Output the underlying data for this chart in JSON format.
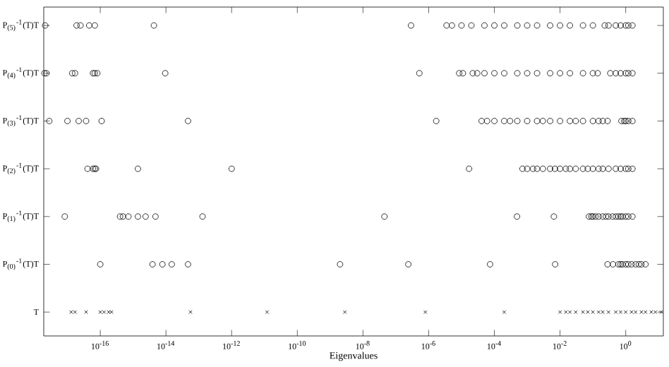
{
  "chart_data": {
    "type": "scatter",
    "orientation": "horizontal",
    "log": "x",
    "xlabel": "Eigenvalues",
    "grid": false,
    "categories": [
      "P$_{(5)}$$^{-1}$(T)T",
      "P$_{(4)}$$^{-1}$(T)T",
      "P$_{(3)}$$^{-1}$(T)T",
      "P$_{(2)}$$^{-1}$(T)T",
      "P$_{(1)}$$^{-1}$(T)T",
      "P$_{(0)}$$^{-1}$(T)T",
      "T"
    ],
    "xlim": [
      1.9e-18,
      14
    ],
    "xticks": [
      {
        "value": 1e-16,
        "label": "10$^{-16}$"
      },
      {
        "value": 1e-14,
        "label": "10$^{-14}$"
      },
      {
        "value": 1e-12,
        "label": "10$^{-12}$"
      },
      {
        "value": 1e-10,
        "label": "10$^{-10}$"
      },
      {
        "value": 1e-08,
        "label": "10$^{-8}$"
      },
      {
        "value": 1e-06,
        "label": "10$^{-6}$"
      },
      {
        "value": 0.0001,
        "label": "10$^{-4}$"
      },
      {
        "value": 0.01,
        "label": "10$^{-2}$"
      },
      {
        "value": 1,
        "label": "10$^{0}$"
      }
    ],
    "series": [
      {
        "color": "#000000",
        "marker": "circle",
        "x": [
          "P$_{(5)}$$^{-1}$(T)T",
          "P$_{(5)}$$^{-1}$(T)T",
          "P$_{(5)}$$^{-1}$(T)T",
          "P$_{(5)}$$^{-1}$(T)T",
          "P$_{(5)}$$^{-1}$(T)T",
          "P$_{(5)}$$^{-1}$(T)T",
          "P$_{(5)}$$^{-1}$(T)T",
          "P$_{(5)}$$^{-1}$(T)T",
          "P$_{(5)}$$^{-1}$(T)T",
          "P$_{(5)}$$^{-1}$(T)T",
          "P$_{(5)}$$^{-1}$(T)T",
          "P$_{(5)}$$^{-1}$(T)T",
          "P$_{(5)}$$^{-1}$(T)T",
          "P$_{(5)}$$^{-1}$(T)T",
          "P$_{(5)}$$^{-1}$(T)T",
          "P$_{(5)}$$^{-1}$(T)T",
          "P$_{(5)}$$^{-1}$(T)T",
          "P$_{(5)}$$^{-1}$(T)T",
          "P$_{(5)}$$^{-1}$(T)T",
          "P$_{(5)}$$^{-1}$(T)T",
          "P$_{(5)}$$^{-1}$(T)T",
          "P$_{(5)}$$^{-1}$(T)T",
          "P$_{(5)}$$^{-1}$(T)T",
          "P$_{(5)}$$^{-1}$(T)T",
          "P$_{(5)}$$^{-1}$(T)T",
          "P$_{(5)}$$^{-1}$(T)T",
          "P$_{(5)}$$^{-1}$(T)T",
          "P$_{(5)}$$^{-1}$(T)T",
          "P$_{(5)}$$^{-1}$(T)T"
        ],
        "values": [
          2.1e-18,
          1.9e-17,
          2.5e-17,
          4.6e-17,
          6.8e-17,
          4.3e-15,
          2.9e-07,
          3.5e-06,
          5.1e-06,
          1e-05,
          2e-05,
          5e-05,
          0.0001,
          0.0002,
          0.0005,
          0.001,
          0.002,
          0.005,
          0.01,
          0.02,
          0.05,
          0.1,
          0.23,
          0.3,
          0.5,
          0.7,
          1,
          1.2,
          1.6
        ]
      },
      {
        "color": "#000000",
        "marker": "circle",
        "x": [
          "P$_{(4)}$$^{-1}$(T)T",
          "P$_{(4)}$$^{-1}$(T)T",
          "P$_{(4)}$$^{-1}$(T)T",
          "P$_{(4)}$$^{-1}$(T)T",
          "P$_{(4)}$$^{-1}$(T)T",
          "P$_{(4)}$$^{-1}$(T)T",
          "P$_{(4)}$$^{-1}$(T)T",
          "P$_{(4)}$$^{-1}$(T)T",
          "P$_{(4)}$$^{-1}$(T)T",
          "P$_{(4)}$$^{-1}$(T)T",
          "P$_{(4)}$$^{-1}$(T)T",
          "P$_{(4)}$$^{-1}$(T)T",
          "P$_{(4)}$$^{-1}$(T)T",
          "P$_{(4)}$$^{-1}$(T)T",
          "P$_{(4)}$$^{-1}$(T)T",
          "P$_{(4)}$$^{-1}$(T)T",
          "P$_{(4)}$$^{-1}$(T)T",
          "P$_{(4)}$$^{-1}$(T)T",
          "P$_{(4)}$$^{-1}$(T)T",
          "P$_{(4)}$$^{-1}$(T)T",
          "P$_{(4)}$$^{-1}$(T)T",
          "P$_{(4)}$$^{-1}$(T)T",
          "P$_{(4)}$$^{-1}$(T)T",
          "P$_{(4)}$$^{-1}$(T)T",
          "P$_{(4)}$$^{-1}$(T)T",
          "P$_{(4)}$$^{-1}$(T)T",
          "P$_{(4)}$$^{-1}$(T)T",
          "P$_{(4)}$$^{-1}$(T)T",
          "P$_{(4)}$$^{-1}$(T)T",
          "P$_{(4)}$$^{-1}$(T)T",
          "P$_{(4)}$$^{-1}$(T)T"
        ],
        "values": [
          2e-18,
          2.3e-18,
          1.4e-17,
          1.7e-17,
          6e-17,
          6.8e-17,
          8.1e-17,
          9.5e-15,
          5.2e-07,
          8.5e-06,
          1.1e-05,
          2.2e-05,
          3e-05,
          5e-05,
          0.0001,
          0.0002,
          0.0005,
          0.001,
          0.002,
          0.005,
          0.01,
          0.02,
          0.05,
          0.1,
          0.14,
          0.34,
          0.5,
          0.7,
          1,
          1.2,
          1.6
        ]
      },
      {
        "color": "#000000",
        "marker": "circle",
        "x": [
          "P$_{(3)}$$^{-1}$(T)T",
          "P$_{(3)}$$^{-1}$(T)T",
          "P$_{(3)}$$^{-1}$(T)T",
          "P$_{(3)}$$^{-1}$(T)T",
          "P$_{(3)}$$^{-1}$(T)T",
          "P$_{(3)}$$^{-1}$(T)T",
          "P$_{(3)}$$^{-1}$(T)T",
          "P$_{(3)}$$^{-1}$(T)T",
          "P$_{(3)}$$^{-1}$(T)T",
          "P$_{(3)}$$^{-1}$(T)T",
          "P$_{(3)}$$^{-1}$(T)T",
          "P$_{(3)}$$^{-1}$(T)T",
          "P$_{(3)}$$^{-1}$(T)T",
          "P$_{(3)}$$^{-1}$(T)T",
          "P$_{(3)}$$^{-1}$(T)T",
          "P$_{(3)}$$^{-1}$(T)T",
          "P$_{(3)}$$^{-1}$(T)T",
          "P$_{(3)}$$^{-1}$(T)T",
          "P$_{(3)}$$^{-1}$(T)T",
          "P$_{(3)}$$^{-1}$(T)T",
          "P$_{(3)}$$^{-1}$(T)T",
          "P$_{(3)}$$^{-1}$(T)T",
          "P$_{(3)}$$^{-1}$(T)T",
          "P$_{(3)}$$^{-1}$(T)T",
          "P$_{(3)}$$^{-1}$(T)T",
          "P$_{(3)}$$^{-1}$(T)T",
          "P$_{(3)}$$^{-1}$(T)T",
          "P$_{(3)}$$^{-1}$(T)T",
          "P$_{(3)}$$^{-1}$(T)T",
          "P$_{(3)}$$^{-1}$(T)T"
        ],
        "values": [
          2.8e-18,
          1e-17,
          2.2e-17,
          3.7e-17,
          1.1e-16,
          4.7e-14,
          1.7e-06,
          4.1e-05,
          6e-05,
          0.0001,
          0.0002,
          0.0003,
          0.0005,
          0.001,
          0.002,
          0.003,
          0.005,
          0.01,
          0.02,
          0.03,
          0.05,
          0.1,
          0.15,
          0.2,
          0.28,
          0.74,
          0.9,
          1,
          1.2,
          1.6
        ]
      },
      {
        "color": "#000000",
        "marker": "circle",
        "x": [
          "P$_{(2)}$$^{-1}$(T)T",
          "P$_{(2)}$$^{-1}$(T)T",
          "P$_{(2)}$$^{-1}$(T)T",
          "P$_{(2)}$$^{-1}$(T)T",
          "P$_{(2)}$$^{-1}$(T)T",
          "P$_{(2)}$$^{-1}$(T)T",
          "P$_{(2)}$$^{-1}$(T)T",
          "P$_{(2)}$$^{-1}$(T)T",
          "P$_{(2)}$$^{-1}$(T)T",
          "P$_{(2)}$$^{-1}$(T)T",
          "P$_{(2)}$$^{-1}$(T)T",
          "P$_{(2)}$$^{-1}$(T)T",
          "P$_{(2)}$$^{-1}$(T)T",
          "P$_{(2)}$$^{-1}$(T)T",
          "P$_{(2)}$$^{-1}$(T)T",
          "P$_{(2)}$$^{-1}$(T)T",
          "P$_{(2)}$$^{-1}$(T)T",
          "P$_{(2)}$$^{-1}$(T)T",
          "P$_{(2)}$$^{-1}$(T)T",
          "P$_{(2)}$$^{-1}$(T)T",
          "P$_{(2)}$$^{-1}$(T)T",
          "P$_{(2)}$$^{-1}$(T)T",
          "P$_{(2)}$$^{-1}$(T)T",
          "P$_{(2)}$$^{-1}$(T)T",
          "P$_{(2)}$$^{-1}$(T)T",
          "P$_{(2)}$$^{-1}$(T)T",
          "P$_{(2)}$$^{-1}$(T)T",
          "P$_{(2)}$$^{-1}$(T)T",
          "P$_{(2)}$$^{-1}$(T)T"
        ],
        "values": [
          4.1e-17,
          6e-17,
          6.8e-17,
          7.4e-17,
          1.4e-15,
          1e-12,
          1.7e-05,
          0.00072,
          0.001,
          0.0015,
          0.002,
          0.003,
          0.005,
          0.007,
          0.01,
          0.015,
          0.02,
          0.03,
          0.05,
          0.07,
          0.1,
          0.15,
          0.2,
          0.3,
          0.5,
          0.7,
          1,
          1.2,
          1.6
        ]
      },
      {
        "color": "#000000",
        "marker": "circle",
        "x": [
          "P$_{(1)}$$^{-1}$(T)T",
          "P$_{(1)}$$^{-1}$(T)T",
          "P$_{(1)}$$^{-1}$(T)T",
          "P$_{(1)}$$^{-1}$(T)T",
          "P$_{(1)}$$^{-1}$(T)T",
          "P$_{(1)}$$^{-1}$(T)T",
          "P$_{(1)}$$^{-1}$(T)T",
          "P$_{(1)}$$^{-1}$(T)T",
          "P$_{(1)}$$^{-1}$(T)T",
          "P$_{(1)}$$^{-1}$(T)T",
          "P$_{(1)}$$^{-1}$(T)T",
          "P$_{(1)}$$^{-1}$(T)T",
          "P$_{(1)}$$^{-1}$(T)T",
          "P$_{(1)}$$^{-1}$(T)T",
          "P$_{(1)}$$^{-1}$(T)T",
          "P$_{(1)}$$^{-1}$(T)T",
          "P$_{(1)}$$^{-1}$(T)T",
          "P$_{(1)}$$^{-1}$(T)T",
          "P$_{(1)}$$^{-1}$(T)T",
          "P$_{(1)}$$^{-1}$(T)T",
          "P$_{(1)}$$^{-1}$(T)T",
          "P$_{(1)}$$^{-1}$(T)T",
          "P$_{(1)}$$^{-1}$(T)T",
          "P$_{(1)}$$^{-1}$(T)T",
          "P$_{(1)}$$^{-1}$(T)T",
          "P$_{(1)}$$^{-1}$(T)T",
          "P$_{(1)}$$^{-1}$(T)T"
        ],
        "values": [
          8.3e-18,
          4e-16,
          4.9e-16,
          7.2e-16,
          1.4e-15,
          2.4e-15,
          4.8e-15,
          1.3e-13,
          4.5e-08,
          0.00049,
          0.0065,
          0.076,
          0.09,
          0.1,
          0.12,
          0.15,
          0.2,
          0.25,
          0.3,
          0.4,
          0.5,
          0.6,
          0.7,
          0.8,
          1,
          1.2,
          1.6
        ]
      },
      {
        "color": "#000000",
        "marker": "circle",
        "x": [
          "P$_{(0)}$$^{-1}$(T)T",
          "P$_{(0)}$$^{-1}$(T)T",
          "P$_{(0)}$$^{-1}$(T)T",
          "P$_{(0)}$$^{-1}$(T)T",
          "P$_{(0)}$$^{-1}$(T)T",
          "P$_{(0)}$$^{-1}$(T)T",
          "P$_{(0)}$$^{-1}$(T)T",
          "P$_{(0)}$$^{-1}$(T)T",
          "P$_{(0)}$$^{-1}$(T)T",
          "P$_{(0)}$$^{-1}$(T)T",
          "P$_{(0)}$$^{-1}$(T)T",
          "P$_{(0)}$$^{-1}$(T)T",
          "P$_{(0)}$$^{-1}$(T)T",
          "P$_{(0)}$$^{-1}$(T)T",
          "P$_{(0)}$$^{-1}$(T)T",
          "P$_{(0)}$$^{-1}$(T)T",
          "P$_{(0)}$$^{-1}$(T)T",
          "P$_{(0)}$$^{-1}$(T)T",
          "P$_{(0)}$$^{-1}$(T)T",
          "P$_{(0)}$$^{-1}$(T)T",
          "P$_{(0)}$$^{-1}$(T)T"
        ],
        "values": [
          1e-16,
          3.9e-15,
          7.8e-15,
          1.5e-14,
          4.7e-14,
          2e-09,
          2.4e-07,
          7.4e-05,
          0.0071,
          0.28,
          0.41,
          0.6,
          0.7,
          0.8,
          1,
          1.2,
          1.5,
          2,
          2.5,
          3,
          4
        ]
      },
      {
        "color": "#000000",
        "marker": "cross",
        "x": [
          "T",
          "T",
          "T",
          "T",
          "T",
          "T",
          "T",
          "T",
          "T",
          "T",
          "T",
          "T",
          "T",
          "T",
          "T",
          "T",
          "T",
          "T",
          "T",
          "T",
          "T",
          "T",
          "T",
          "T",
          "T",
          "T",
          "T",
          "T",
          "T",
          "T",
          "T",
          "T"
        ],
        "values": [
          1.3e-17,
          1.7e-17,
          3.7e-17,
          1e-16,
          1.3e-16,
          1.8e-16,
          2.2e-16,
          5.6e-14,
          1.2e-11,
          2.8e-09,
          7.9e-07,
          0.0002,
          0.01,
          0.015,
          0.02,
          0.03,
          0.05,
          0.07,
          0.1,
          0.15,
          0.2,
          0.3,
          0.5,
          0.7,
          1,
          1.5,
          2,
          3,
          4,
          6,
          8,
          12
        ]
      }
    ]
  }
}
